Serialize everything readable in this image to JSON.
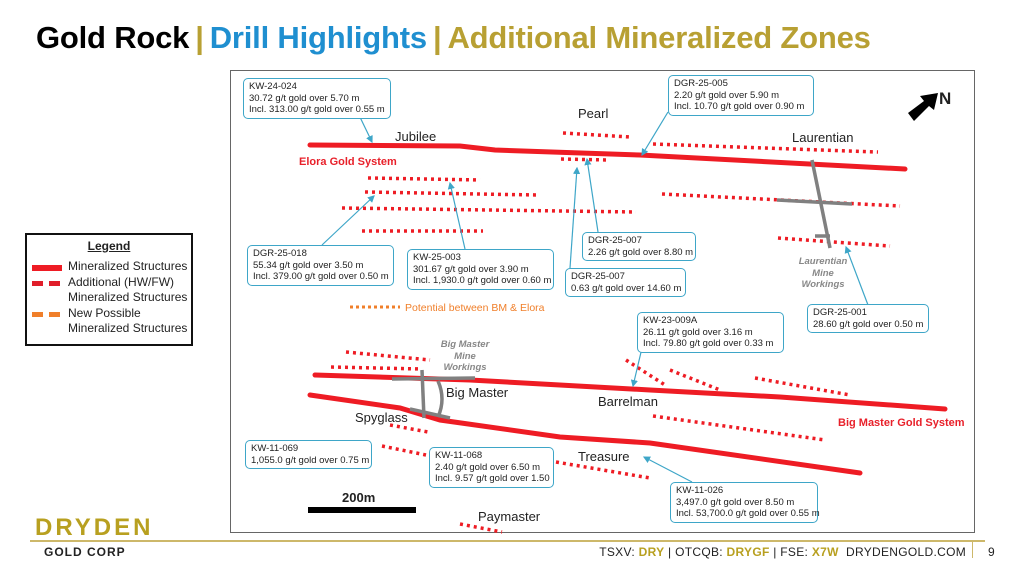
{
  "title": {
    "part1": "Gold Rock",
    "sep": "|",
    "part2": "Drill Highlights",
    "part3": "Additional Mineralized Zones",
    "colors": {
      "part1": "#000000",
      "part2": "#1f8fd0",
      "part3": "#b8a033"
    }
  },
  "map": {
    "north_label": "N",
    "scale_label": "200m",
    "areas": [
      "Jubilee",
      "Pearl",
      "Laurentian",
      "Big Master",
      "Barrelman",
      "Spyglass",
      "Treasure",
      "Paymaster"
    ],
    "systems": [
      "Elora Gold System",
      "Big Master Gold System"
    ],
    "workings": [
      {
        "lines": [
          "Laurentian",
          "Mine",
          "Workings"
        ]
      },
      {
        "lines": [
          "Big Master",
          "Mine",
          "Workings"
        ]
      }
    ],
    "potential_label": "Potential between BM & Elora",
    "callouts": [
      {
        "hole": "KW-24-024",
        "lines": [
          "30.72 g/t gold over 5.70 m",
          "Incl. 313.00 g/t gold over 0.55 m"
        ]
      },
      {
        "hole": "DGR-25-005",
        "lines": [
          "2.20 g/t gold over 5.90 m",
          "Incl. 10.70 g/t gold over 0.90 m"
        ]
      },
      {
        "hole": "DGR-25-018",
        "lines": [
          "55.34 g/t gold over 3.50 m",
          "Incl. 379.00 g/t gold over 0.50 m"
        ]
      },
      {
        "hole": "KW-25-003",
        "lines": [
          "301.67 g/t gold over 3.90 m",
          "Incl. 1,930.0 g/t gold over 0.60 m"
        ]
      },
      {
        "hole": "DGR-25-007",
        "lines": [
          "2.26 g/t gold over 8.80 m"
        ]
      },
      {
        "hole": "DGR-25-007",
        "lines": [
          "0.63 g/t gold over 14.60 m"
        ]
      },
      {
        "hole": "DGR-25-001",
        "lines": [
          "28.60 g/t gold over 0.50 m"
        ]
      },
      {
        "hole": "KW-23-009A",
        "lines": [
          "26.11 g/t gold over 3.16 m",
          "Incl. 79.80 g/t gold over 0.33 m"
        ]
      },
      {
        "hole": "KW-11-069",
        "lines": [
          "1,055.0 g/t gold over 0.75 m"
        ]
      },
      {
        "hole": "KW-11-068",
        "lines": [
          "2.40 g/t gold over 6.50 m",
          "Incl. 9.57 g/t gold over 1.50"
        ]
      },
      {
        "hole": "KW-11-026",
        "lines": [
          "3,497.0 g/t gold over 8.50 m",
          "Incl. 53,700.0 g/t gold over 0.55 m"
        ]
      }
    ],
    "colors": {
      "structure": "#ee1c24",
      "potential": "#f07f2a",
      "workings": "#808080",
      "callout_border": "#3ea6c8"
    }
  },
  "legend": {
    "title": "Legend",
    "items": [
      {
        "label1": "Mineralized Structures",
        "label2": ""
      },
      {
        "label1": "Additional (HW/FW)",
        "label2": "Mineralized Structures"
      },
      {
        "label1": "New Possible",
        "label2": "Mineralized Structures"
      }
    ]
  },
  "footer": {
    "logo": "DRYDEN",
    "corp": "GOLD CORP",
    "tsxv_label": "TSXV:",
    "tsxv": "DRY",
    "otcqb_label": "OTCQB:",
    "otcqb": "DRYGF",
    "fse_label": "FSE:",
    "fse": "X7W",
    "website": "DRYDENGOLD.COM",
    "page": "9"
  }
}
